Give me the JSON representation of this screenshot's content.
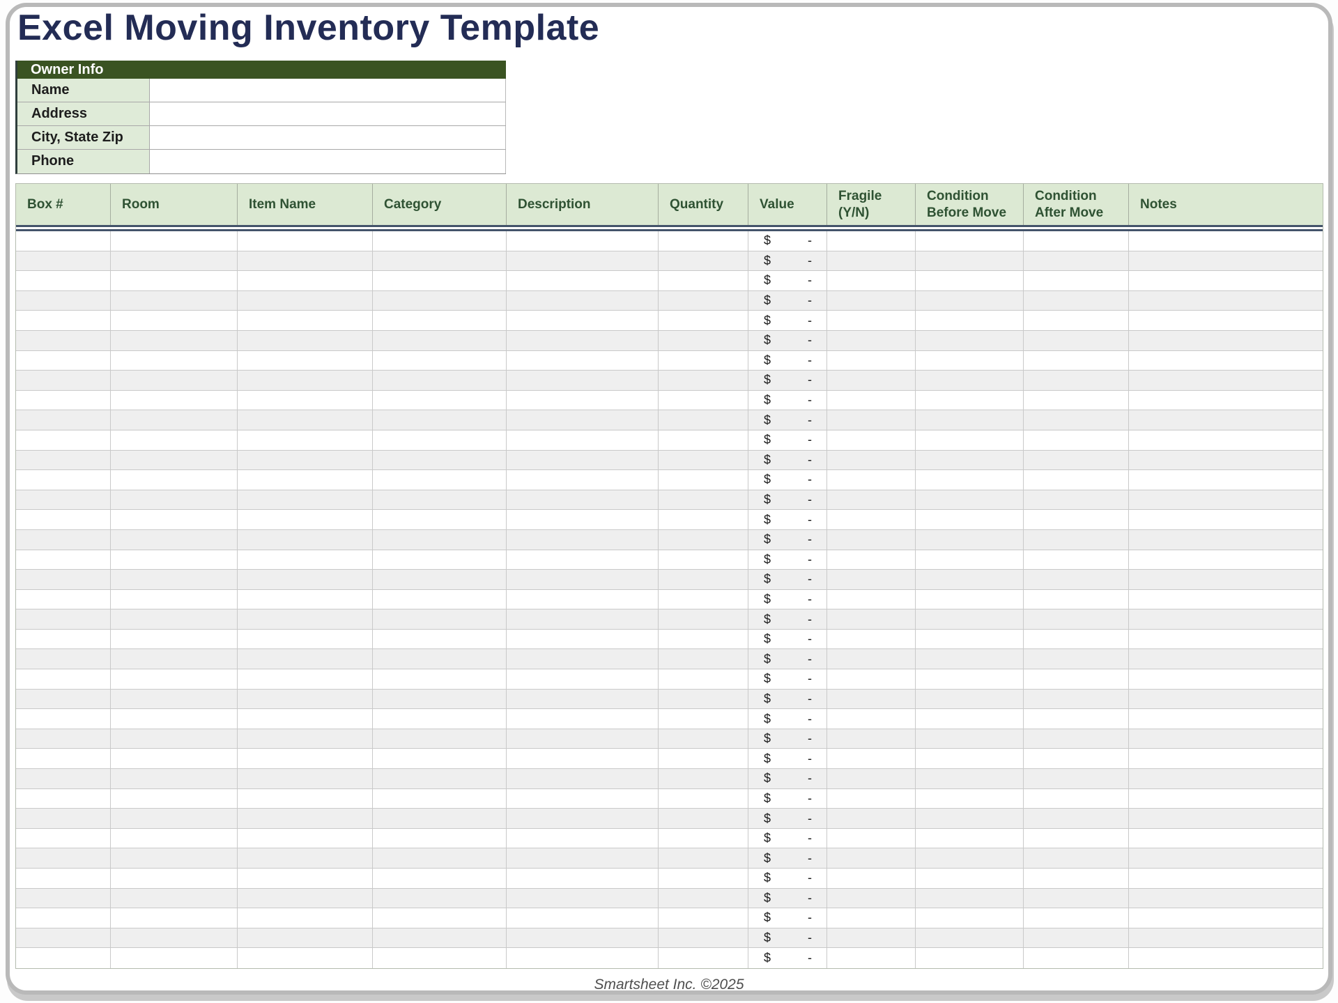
{
  "title": "Excel Moving Inventory Template",
  "owner_info": {
    "header": "Owner Info",
    "fields": [
      {
        "label": "Name",
        "value": ""
      },
      {
        "label": "Address",
        "value": ""
      },
      {
        "label": "City, State Zip",
        "value": ""
      },
      {
        "label": "Phone",
        "value": ""
      }
    ]
  },
  "table": {
    "columns": [
      {
        "key": "box",
        "label": "Box #"
      },
      {
        "key": "room",
        "label": "Room"
      },
      {
        "key": "item_name",
        "label": "Item Name"
      },
      {
        "key": "category",
        "label": "Category"
      },
      {
        "key": "description",
        "label": "Description"
      },
      {
        "key": "quantity",
        "label": "Quantity"
      },
      {
        "key": "value",
        "label": "Value"
      },
      {
        "key": "fragile",
        "label": "Fragile (Y/N)"
      },
      {
        "key": "condition_before",
        "label": "Condition Before Move"
      },
      {
        "key": "condition_after",
        "label": "Condition After Move"
      },
      {
        "key": "notes",
        "label": "Notes"
      }
    ],
    "row_count": 37,
    "value_cell": {
      "currency_symbol": "$",
      "placeholder": "-"
    },
    "empty_cell_value": ""
  },
  "footer": {
    "text": "Smartsheet Inc. ©2025"
  },
  "colors": {
    "title_navy": "#232C55",
    "dark_green": "#3A5322",
    "light_green": "#DCE9D3",
    "owner_label_green": "#DFEBD8",
    "header_text_green": "#2F5233",
    "rule_navy": "#44546A",
    "row_alt": "#EFEFEF",
    "card_border": "#b9b9b9",
    "card_shadow": "#c9c9c9",
    "owner_accent": "#2f3e3c",
    "card_bg": "#ffffff"
  }
}
